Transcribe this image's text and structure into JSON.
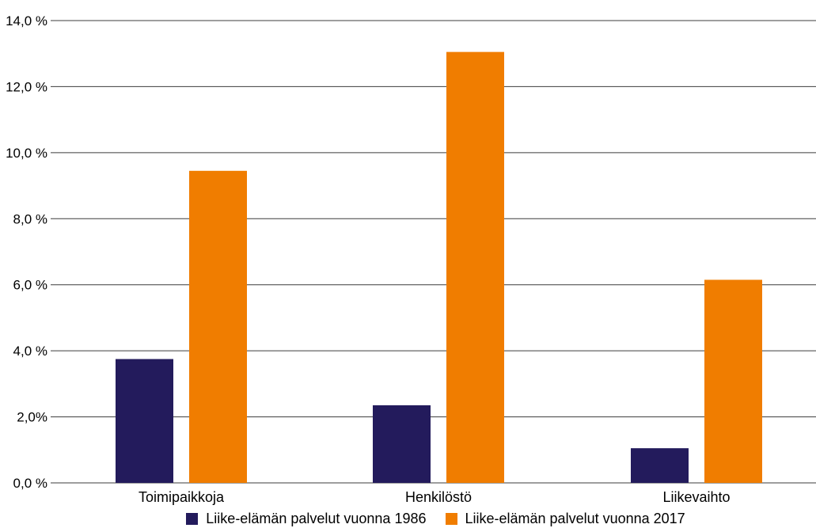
{
  "chart_data": {
    "type": "bar",
    "categories": [
      "Toimipaikkoja",
      "Henkilöstö",
      "Liikevaihto"
    ],
    "series": [
      {
        "name": "Liike-elämän palvelut vuonna 1986",
        "color": "#231b5c",
        "values": [
          3.75,
          2.35,
          1.05
        ]
      },
      {
        "name": "Liike-elämän palvelut vuonna 2017",
        "color": "#f07d00",
        "values": [
          9.45,
          13.05,
          6.15
        ]
      }
    ],
    "y_ticks": [
      {
        "value": 0,
        "label": "0,0 %"
      },
      {
        "value": 2,
        "label": "2,0%"
      },
      {
        "value": 4,
        "label": "4,0 %"
      },
      {
        "value": 6,
        "label": "6,0 %"
      },
      {
        "value": 8,
        "label": "8,0 %"
      },
      {
        "value": 10,
        "label": "10,0 %"
      },
      {
        "value": 12,
        "label": "12,0 %"
      },
      {
        "value": 14,
        "label": "14,0 %"
      }
    ],
    "ylim": [
      0,
      14
    ],
    "grid": true,
    "legend_position": "bottom",
    "title": "",
    "xlabel": "",
    "ylabel": ""
  }
}
